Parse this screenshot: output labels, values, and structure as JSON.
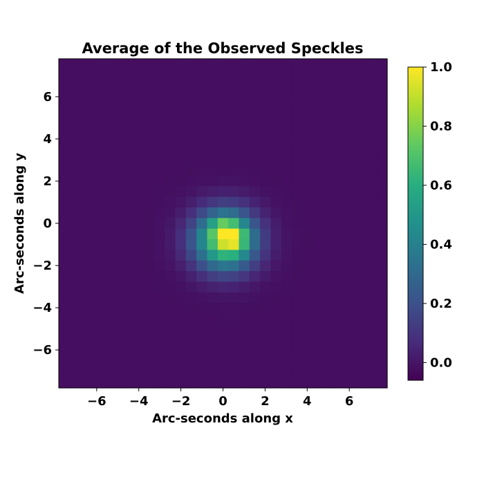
{
  "chart_data": {
    "type": "heatmap",
    "title": "Average of the Observed Speckles",
    "xlabel": "Arc-seconds along x",
    "ylabel": "Arc-seconds along y",
    "xlim": [
      -7.8,
      7.8
    ],
    "ylim": [
      -7.8,
      7.8
    ],
    "x_ticks": [
      -6,
      -4,
      -2,
      0,
      2,
      4,
      6
    ],
    "y_ticks": [
      -6,
      -4,
      -2,
      0,
      2,
      4,
      6
    ],
    "x_tick_labels": [
      "−6",
      "−4",
      "−2",
      "0",
      "2",
      "4",
      "6"
    ],
    "y_tick_labels": [
      "−6",
      "−4",
      "−2",
      "0",
      "2",
      "4",
      "6"
    ],
    "grid": false,
    "colormap": "viridis",
    "color_range": [
      -0.06,
      1.0
    ],
    "colorbar_ticks": [
      0.0,
      0.2,
      0.4,
      0.6,
      0.8,
      1.0
    ],
    "colorbar_tick_labels": [
      "0.0",
      "0.2",
      "0.4",
      "0.6",
      "0.8",
      "1.0"
    ],
    "grid_size": 31,
    "background_value": -0.02,
    "blobs": [
      {
        "center": [
          0.1,
          -0.8
        ],
        "sigma": [
          1.05,
          1.0
        ],
        "amplitude": 0.78
      },
      {
        "center": [
          0.5,
          -0.7
        ],
        "sigma": [
          0.45,
          0.45
        ],
        "amplitude": 0.32
      },
      {
        "center": [
          0.0,
          -0.3
        ],
        "sigma": [
          0.4,
          0.4
        ],
        "amplitude": 0.2
      }
    ]
  }
}
